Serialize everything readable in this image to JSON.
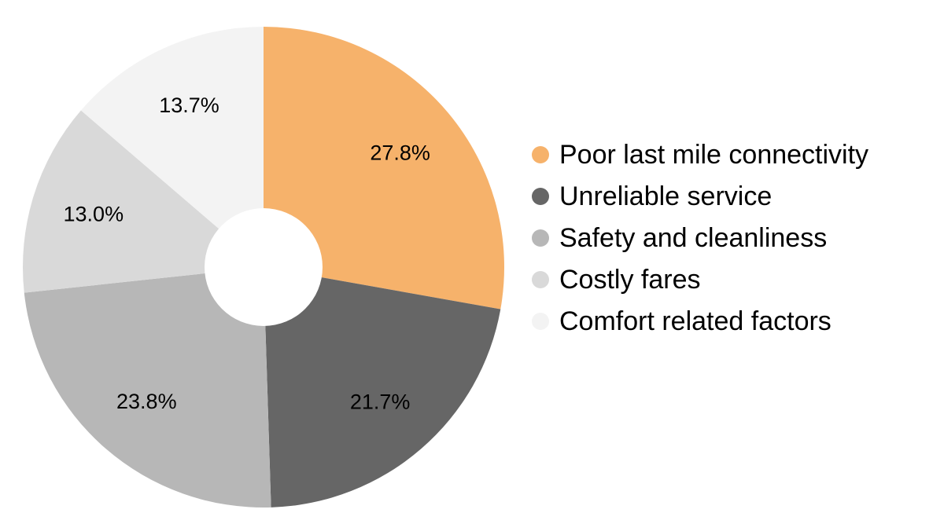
{
  "chart_data": {
    "type": "pie",
    "subtype": "donut",
    "title": "",
    "categories": [
      "Poor last mile connectivity",
      "Unreliable service",
      "Safety and cleanliness",
      "Costly fares",
      "Comfort related factors"
    ],
    "values": [
      27.8,
      21.7,
      23.8,
      13.0,
      13.7
    ],
    "slice_labels": [
      "27.8%",
      "21.7%",
      "23.8%",
      "13.0%",
      "13.7%"
    ],
    "colors": [
      "#F6B26B",
      "#666666",
      "#B7B7B7",
      "#D9D9D9",
      "#F3F3F3"
    ],
    "start_angle": "12 o'clock",
    "direction": "clockwise",
    "donut_hole_ratio": 0.245,
    "label_color": "#000000",
    "legend_position": "right",
    "background": "#FFFFFF"
  }
}
